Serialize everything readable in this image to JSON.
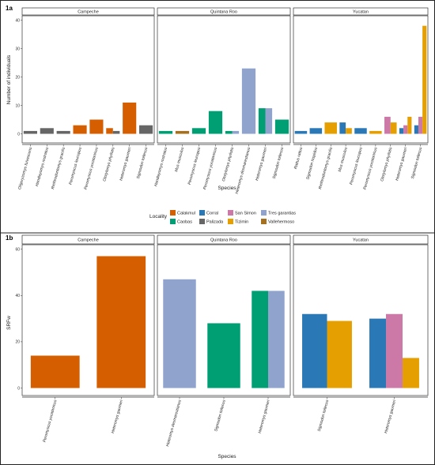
{
  "colors": {
    "Calakmul": "#D55E00",
    "Corral": "#2A78B5",
    "San Simon": "#CC79A7",
    "Tres garantias": "#8FA3CC",
    "Caobas": "#009E73",
    "Palizada": "#666666",
    "Tizimin": "#E69F00",
    "Valleherm oso": "#A06B1E",
    "Vallehermoso": "#A57020"
  },
  "legend": {
    "title": "Locality",
    "items": [
      "Calakmul",
      "Corral",
      "San Simon",
      "Tres garantias",
      "Caobas",
      "Palizada",
      "Tizimin",
      "Vallehermoso"
    ]
  },
  "chart_data": [
    {
      "panel_label": "1a",
      "type": "bar",
      "ylabel": "Number of individuals",
      "xlabel": "Species",
      "ylim": [
        0,
        40
      ],
      "yticks": [
        0,
        10,
        20,
        30,
        40
      ],
      "facets": [
        {
          "name": "Campeche",
          "categories": [
            "Oligoryzomys fulvescens",
            "Handleyomys rostratus",
            "Reithrodontomys gracilis",
            "Peromyscus leucopus",
            "Peromyscus yucatanicus",
            "Ototylomys phyllotis",
            "Heteromys gaumeri",
            "Sigmodon toltecus"
          ],
          "bars": [
            {
              "category": "Oligoryzomys fulvescens",
              "locality": "Palizada",
              "value": 1
            },
            {
              "category": "Handleyomys rostratus",
              "locality": "Palizada",
              "value": 2
            },
            {
              "category": "Reithrodontomys gracilis",
              "locality": "Palizada",
              "value": 1
            },
            {
              "category": "Peromyscus leucopus",
              "locality": "Calakmul",
              "value": 3
            },
            {
              "category": "Peromyscus yucatanicus",
              "locality": "Calakmul",
              "value": 5
            },
            {
              "category": "Ototylomys phyllotis",
              "locality": "Calakmul",
              "value": 2
            },
            {
              "category": "Ototylomys phyllotis",
              "locality": "Palizada",
              "value": 1
            },
            {
              "category": "Heteromys gaumeri",
              "locality": "Calakmul",
              "value": 11
            },
            {
              "category": "Sigmodon toltecus",
              "locality": "Palizada",
              "value": 3
            }
          ]
        },
        {
          "name": "Quintana Roo",
          "categories": [
            "Handleyomys rostratus",
            "Mus musculus",
            "Peromyscus leucopus",
            "Peromyscus yucatanicus",
            "Ototylomys phyllotis",
            "Heteromys desmarestianus",
            "Heteromys gaumeri",
            "Sigmodon toltecus"
          ],
          "bars": [
            {
              "category": "Handleyomys rostratus",
              "locality": "Caobas",
              "value": 1
            },
            {
              "category": "Mus musculus",
              "locality": "Vallehermoso",
              "value": 1
            },
            {
              "category": "Peromyscus leucopus",
              "locality": "Caobas",
              "value": 2
            },
            {
              "category": "Peromyscus yucatanicus",
              "locality": "Caobas",
              "value": 8
            },
            {
              "category": "Ototylomys phyllotis",
              "locality": "Caobas",
              "value": 1
            },
            {
              "category": "Ototylomys phyllotis",
              "locality": "Tres garantias",
              "value": 1
            },
            {
              "category": "Heteromys desmarestianus",
              "locality": "Tres garantias",
              "value": 23
            },
            {
              "category": "Heteromys gaumeri",
              "locality": "Caobas",
              "value": 9
            },
            {
              "category": "Heteromys gaumeri",
              "locality": "Tres garantias",
              "value": 9
            },
            {
              "category": "Sigmodon toltecus",
              "locality": "Caobas",
              "value": 5
            }
          ]
        },
        {
          "name": "Yucatan",
          "categories": [
            "Rattus rattus",
            "Sigmodon hispidus",
            "Reithrodontomys gracilis",
            "Mus musculus",
            "Peromyscus leucopus",
            "Peromyscus yucatanicus",
            "Ototylomys phyllotis",
            "Heteromys gaumeri",
            "Sigmodon toltecus"
          ],
          "bars": [
            {
              "category": "Rattus rattus",
              "locality": "Corral",
              "value": 1
            },
            {
              "category": "Sigmodon hispidus",
              "locality": "Corral",
              "value": 2
            },
            {
              "category": "Reithrodontomys gracilis",
              "locality": "Tizimin",
              "value": 4
            },
            {
              "category": "Mus musculus",
              "locality": "Corral",
              "value": 4
            },
            {
              "category": "Mus musculus",
              "locality": "Tizimin",
              "value": 2
            },
            {
              "category": "Peromyscus leucopus",
              "locality": "Corral",
              "value": 2
            },
            {
              "category": "Peromyscus yucatanicus",
              "locality": "Tizimin",
              "value": 1
            },
            {
              "category": "Ototylomys phyllotis",
              "locality": "San Simon",
              "value": 6
            },
            {
              "category": "Ototylomys phyllotis",
              "locality": "Tizimin",
              "value": 4
            },
            {
              "category": "Heteromys gaumeri",
              "locality": "Corral",
              "value": 2
            },
            {
              "category": "Heteromys gaumeri",
              "locality": "San Simon",
              "value": 3
            },
            {
              "category": "Heteromys gaumeri",
              "locality": "Tizimin",
              "value": 6
            },
            {
              "category": "Sigmodon toltecus",
              "locality": "Corral",
              "value": 3
            },
            {
              "category": "Sigmodon toltecus",
              "locality": "San Simon",
              "value": 6
            },
            {
              "category": "Sigmodon toltecus",
              "locality": "Tizimin",
              "value": 38
            }
          ]
        }
      ]
    },
    {
      "panel_label": "1b",
      "type": "bar",
      "ylabel": "SRFw",
      "xlabel": "Species",
      "ylim": [
        0,
        60
      ],
      "yticks": [
        0,
        20,
        40,
        60
      ],
      "facets": [
        {
          "name": "Campeche",
          "categories": [
            "Peromyscus yucatanicus",
            "Heteromys gaumeri"
          ],
          "bars": [
            {
              "category": "Peromyscus yucatanicus",
              "locality": "Calakmul",
              "value": 14
            },
            {
              "category": "Heteromys gaumeri",
              "locality": "Calakmul",
              "value": 57
            }
          ]
        },
        {
          "name": "Quintana Roo",
          "categories": [
            "Heteromys desmarestianus",
            "Sigmodon toltecus",
            "Heteromys gaumeri"
          ],
          "bars": [
            {
              "category": "Heteromys desmarestianus",
              "locality": "Tres garantias",
              "value": 47
            },
            {
              "category": "Sigmodon toltecus",
              "locality": "Caobas",
              "value": 28
            },
            {
              "category": "Heteromys gaumeri",
              "locality": "Caobas",
              "value": 42
            },
            {
              "category": "Heteromys gaumeri",
              "locality": "Tres garantias",
              "value": 42
            }
          ]
        },
        {
          "name": "Yucatan",
          "categories": [
            "Sigmodon toltecus",
            "Heteromys gaumeri"
          ],
          "bars": [
            {
              "category": "Sigmodon toltecus",
              "locality": "Corral",
              "value": 32
            },
            {
              "category": "Sigmodon toltecus",
              "locality": "Tizimin",
              "value": 29
            },
            {
              "category": "Heteromys gaumeri",
              "locality": "Corral",
              "value": 30
            },
            {
              "category": "Heteromys gaumeri",
              "locality": "San Simon",
              "value": 32
            },
            {
              "category": "Heteromys gaumeri",
              "locality": "Tizimin",
              "value": 13
            }
          ]
        }
      ]
    }
  ]
}
